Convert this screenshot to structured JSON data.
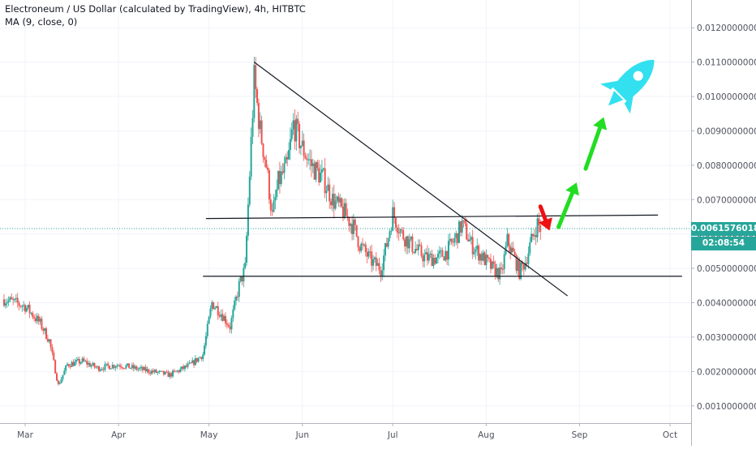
{
  "header": {
    "symbol_line": "Electroneum / US Dollar (calculated by TradingView), 4h, HITBTC",
    "indicator_line": "MA (9, close, 0)"
  },
  "price_label": {
    "value": "0.0061576018",
    "countdown": "02:08:54"
  },
  "colors": {
    "up": "#26a69a",
    "down": "#ef5350",
    "current_price": "#26a69a",
    "trendline": "#131722",
    "arrow_up": "#22dd22",
    "arrow_down": "#ee1111",
    "rocket": "#33e0f0",
    "grid": "#f0f3fa",
    "axis_text": "#50535e"
  },
  "chart_data": {
    "type": "candlestick",
    "ylim": [
      0.0005,
      0.0125
    ],
    "x_axis_labels": [
      "Mar",
      "Apr",
      "May",
      "Jun",
      "Jul",
      "Aug",
      "Sep",
      "Oct"
    ],
    "y_axis_labels": [
      "0.0010000000",
      "0.0020000000",
      "0.0030000000",
      "0.0040000000",
      "0.0050000000",
      "0.0060000000",
      "0.0070000000",
      "0.0080000000",
      "0.0090000000",
      "0.0100000000",
      "0.0110000000",
      "0.0120000000"
    ],
    "y_axis_values": [
      0.001,
      0.002,
      0.003,
      0.004,
      0.005,
      0.006,
      0.007,
      0.008,
      0.009,
      0.01,
      0.011,
      0.012
    ],
    "current_price": 0.0061576018,
    "price_path": [
      [
        "Feb 22",
        0.0041
      ],
      [
        "Mar 1",
        0.0039
      ],
      [
        "Mar 6",
        0.0034
      ],
      [
        "Mar 9",
        0.0029
      ],
      [
        "Mar 12",
        0.0016
      ],
      [
        "Mar 15",
        0.0022
      ],
      [
        "Mar 20",
        0.0023
      ],
      [
        "Mar 25",
        0.0021
      ],
      [
        "Apr 1",
        0.0022
      ],
      [
        "Apr 6",
        0.0021
      ],
      [
        "Apr 12",
        0.002
      ],
      [
        "Apr 18",
        0.0019
      ],
      [
        "Apr 25",
        0.0022
      ],
      [
        "Apr 29",
        0.0025
      ],
      [
        "May 2",
        0.004
      ],
      [
        "May 5",
        0.0037
      ],
      [
        "May 8",
        0.0033
      ],
      [
        "May 11",
        0.0045
      ],
      [
        "May 13",
        0.005
      ],
      [
        "May 16",
        0.0105
      ],
      [
        "May 18",
        0.009
      ],
      [
        "May 20",
        0.008
      ],
      [
        "May 22",
        0.0065
      ],
      [
        "May 24",
        0.0075
      ],
      [
        "May 27",
        0.008
      ],
      [
        "May 29",
        0.0092
      ],
      [
        "Jun 1",
        0.0085
      ],
      [
        "Jun 4",
        0.008
      ],
      [
        "Jun 8",
        0.0076
      ],
      [
        "Jun 11",
        0.007
      ],
      [
        "Jun 15",
        0.0066
      ],
      [
        "Jun 18",
        0.0062
      ],
      [
        "Jun 20",
        0.0057
      ],
      [
        "Jun 24",
        0.0052
      ],
      [
        "Jun 27",
        0.005
      ],
      [
        "Jun 29",
        0.0057
      ],
      [
        "Jul 1",
        0.0066
      ],
      [
        "Jul 4",
        0.006
      ],
      [
        "Jul 8",
        0.0056
      ],
      [
        "Jul 12",
        0.0053
      ],
      [
        "Jul 16",
        0.0053
      ],
      [
        "Jul 19",
        0.0055
      ],
      [
        "Jul 22",
        0.0059
      ],
      [
        "Jul 24",
        0.0063
      ],
      [
        "Jul 27",
        0.0057
      ],
      [
        "Jul 31",
        0.0053
      ],
      [
        "Aug 3",
        0.005
      ],
      [
        "Aug 6",
        0.0048
      ],
      [
        "Aug 8",
        0.0058
      ],
      [
        "Aug 10",
        0.0054
      ],
      [
        "Aug 12",
        0.0049
      ],
      [
        "Aug 14",
        0.0052
      ],
      [
        "Aug 16",
        0.0058
      ],
      [
        "Aug 18",
        0.0063
      ],
      [
        "Aug 19",
        0.00616
      ]
    ],
    "annotations": {
      "descending_trendline": [
        [
          "May 16",
          0.011
        ],
        [
          "Aug 28",
          0.0042
        ]
      ],
      "resistance_line": [
        [
          "Apr 30",
          0.00645
        ],
        [
          "Sep 27",
          0.00655
        ]
      ],
      "support_line": [
        [
          "Apr 29",
          0.00477
        ],
        [
          "Oct 5",
          0.00477
        ]
      ],
      "arrow_down": [
        [
          "Aug 19",
          0.0068
        ],
        [
          "Aug 22",
          0.0061
        ]
      ],
      "arrow_up_1": [
        [
          "Aug 25",
          0.0062
        ],
        [
          "Aug 31",
          0.0075
        ]
      ],
      "arrow_up_2": [
        [
          "Sep 3",
          0.0079
        ],
        [
          "Sep 9",
          0.0094
        ]
      ],
      "rocket_icon": [
        "Sep 17",
        0.0103
      ]
    }
  }
}
